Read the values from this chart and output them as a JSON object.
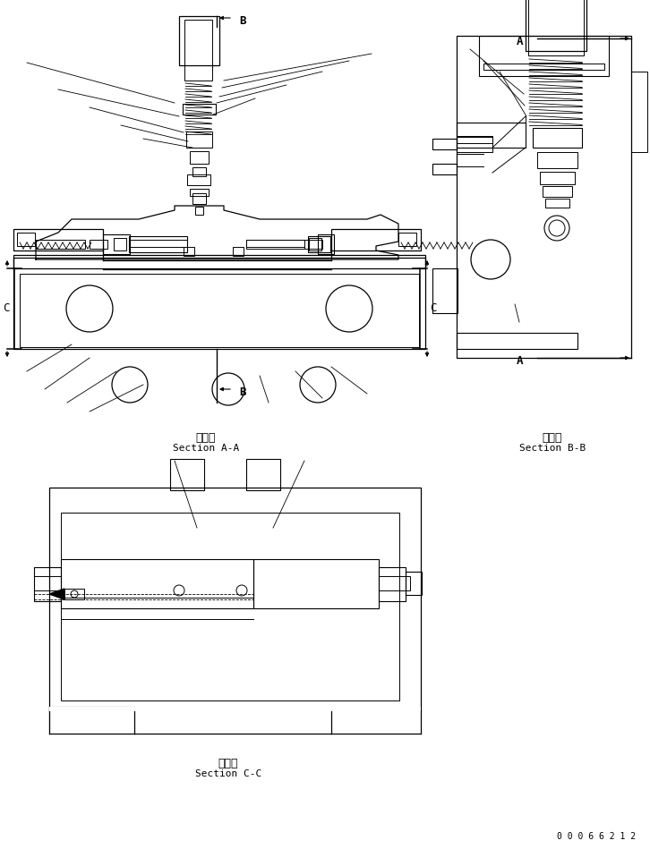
{
  "bg_color": "#ffffff",
  "line_color": "#000000",
  "fig_width": 7.26,
  "fig_height": 9.49,
  "section_aa_line1": "断　面",
  "section_aa_line2": "Section A-A",
  "section_bb_line1": "断　面",
  "section_bb_line2": "Section B-B",
  "section_cc_line1": "断　面",
  "section_cc_line2": "Section C-C",
  "serial_number": "0 0 0 6 6 2 1 2"
}
